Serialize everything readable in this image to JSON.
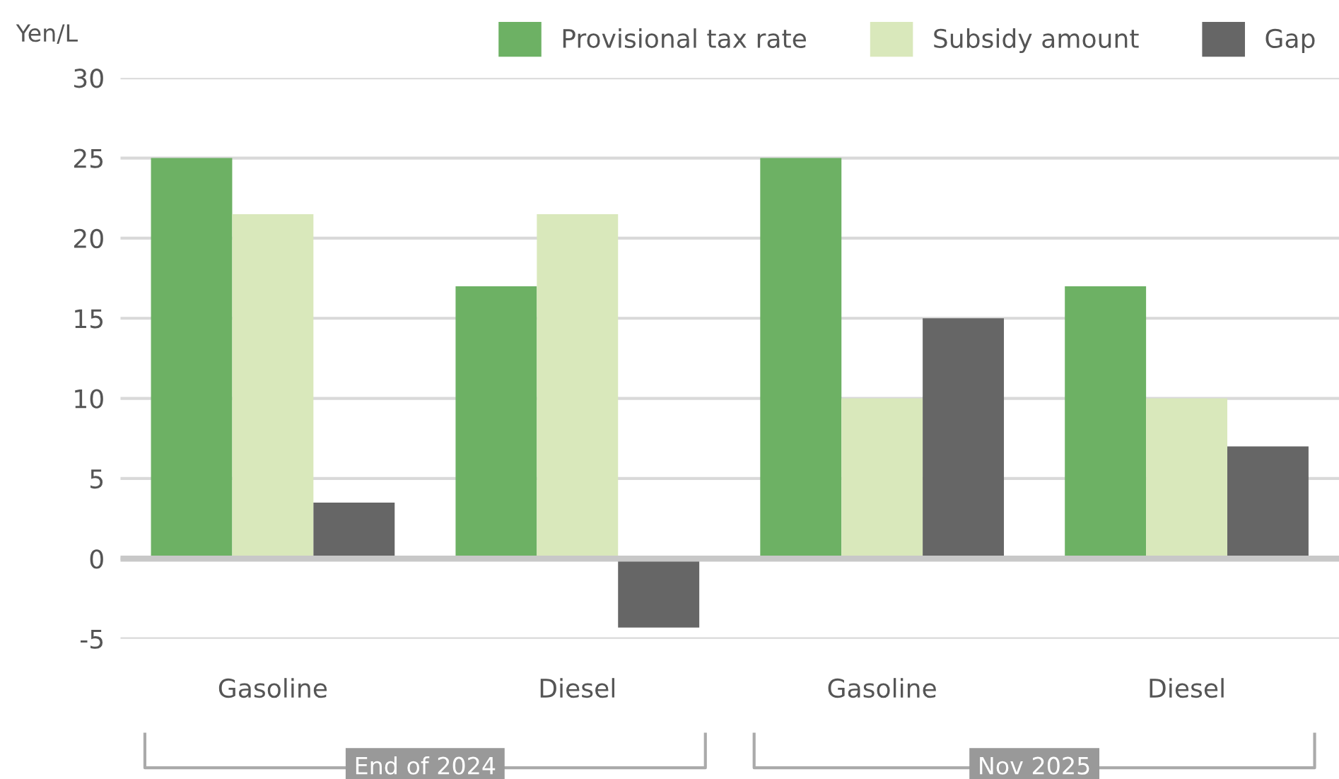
{
  "chart_data": {
    "type": "bar",
    "ylabel": "Yen/L",
    "categories": [
      "Gasoline",
      "Diesel",
      "Gasoline",
      "Diesel"
    ],
    "series": [
      {
        "name": "Provisional tax rate",
        "color": "#6db164",
        "values": [
          25,
          17,
          25,
          17
        ]
      },
      {
        "name": "Subsidy amount",
        "color": "#d9e8bb",
        "values": [
          21.5,
          21.5,
          10,
          10
        ]
      },
      {
        "name": "Gap",
        "color": "#666666",
        "values": [
          3.5,
          -4.3,
          15,
          7
        ]
      }
    ],
    "ylim": [
      -5,
      30
    ],
    "yticks": [
      -5,
      0,
      5,
      10,
      15,
      20,
      25,
      30
    ],
    "grid": "y",
    "legend": "top right",
    "annotations": [
      "End of 2024",
      "Nov 2025"
    ]
  }
}
